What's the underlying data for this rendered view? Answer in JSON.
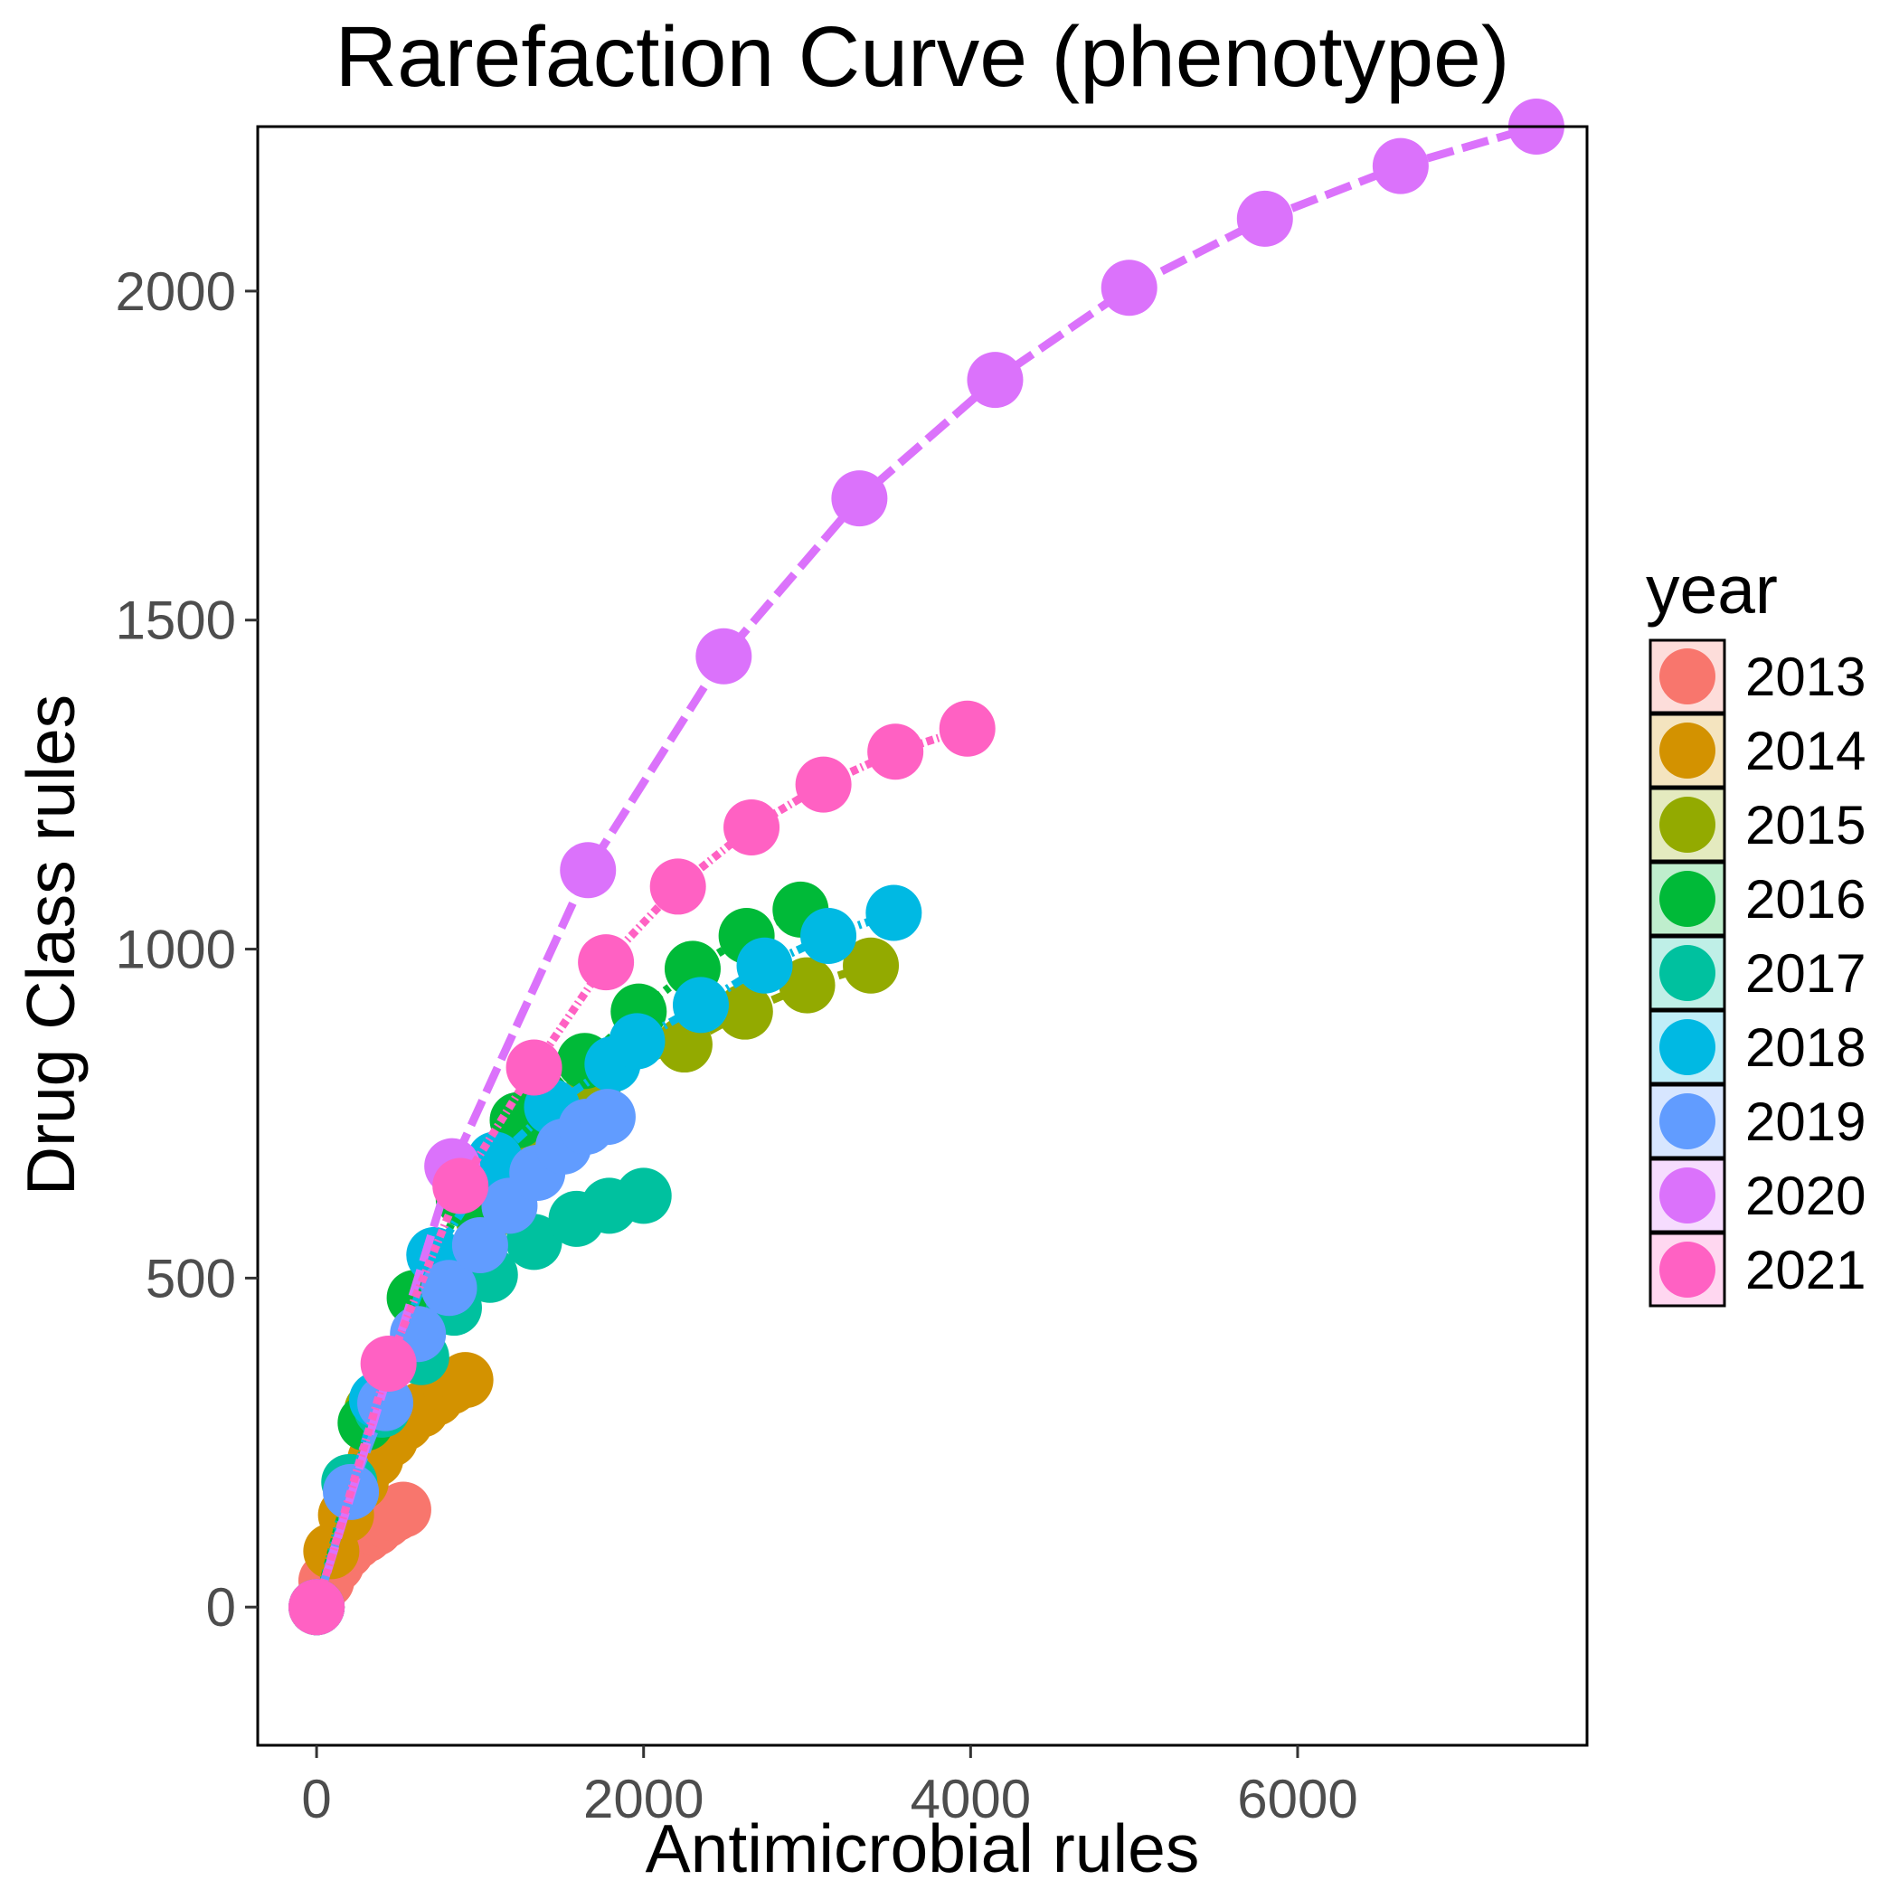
{
  "chart_data": {
    "type": "line",
    "title": "Rarefaction Curve (phenotype)",
    "xlabel": "Antimicrobial rules",
    "ylabel": "Drug Class rules",
    "xlim": [
      -360,
      7770
    ],
    "ylim": [
      -210,
      2250
    ],
    "x_ticks": [
      0,
      2000,
      4000,
      6000
    ],
    "y_ticks": [
      0,
      500,
      1000,
      1500,
      2000
    ],
    "grid": false,
    "legend": {
      "title": "year",
      "placement": "right"
    },
    "series": [
      {
        "name": "2013",
        "color": "#F8766D",
        "x": [
          0,
          60,
          120,
          180,
          240,
          300,
          360,
          420,
          480,
          530
        ],
        "y": [
          0,
          40,
          65,
          85,
          100,
          110,
          120,
          132,
          142,
          148
        ]
      },
      {
        "name": "2014",
        "color": "#D39200",
        "x": [
          0,
          90,
          180,
          270,
          360,
          450,
          540,
          640,
          730,
          820,
          910
        ],
        "y": [
          0,
          85,
          140,
          190,
          225,
          255,
          280,
          300,
          318,
          335,
          345
        ]
      },
      {
        "name": "2015",
        "color": "#93AA00",
        "x": [
          0,
          340,
          680,
          1020,
          1360,
          1700,
          2250,
          2620,
          3000,
          3390
        ],
        "y": [
          0,
          300,
          470,
          590,
          700,
          800,
          855,
          905,
          945,
          975
        ]
      },
      {
        "name": "2016",
        "color": "#00BA38",
        "x": [
          0,
          300,
          600,
          900,
          1230,
          1640,
          1970,
          2300,
          2630,
          2960
        ],
        "y": [
          0,
          280,
          470,
          620,
          740,
          830,
          905,
          970,
          1020,
          1060
        ]
      },
      {
        "name": "2017",
        "color": "#00C19F",
        "x": [
          0,
          200,
          400,
          640,
          840,
          1060,
          1330,
          1590,
          1790,
          2000
        ],
        "y": [
          0,
          190,
          300,
          380,
          455,
          505,
          555,
          590,
          610,
          625
        ]
      },
      {
        "name": "2018",
        "color": "#00B9E3",
        "x": [
          0,
          370,
          720,
          1090,
          1440,
          1810,
          1960,
          2350,
          2740,
          3130,
          3530
        ],
        "y": [
          0,
          315,
          535,
          680,
          760,
          825,
          860,
          915,
          975,
          1020,
          1055
        ]
      },
      {
        "name": "2019",
        "color": "#619CFF",
        "x": [
          0,
          210,
          420,
          620,
          810,
          1000,
          1180,
          1350,
          1510,
          1650,
          1780
        ],
        "y": [
          0,
          175,
          310,
          415,
          485,
          550,
          610,
          660,
          700,
          730,
          745
        ]
      },
      {
        "name": "2020",
        "color": "#DB72FB",
        "x": [
          0,
          830,
          1660,
          2490,
          3320,
          4150,
          4970,
          5800,
          6630,
          7460
        ],
        "y": [
          0,
          670,
          1120,
          1445,
          1685,
          1865,
          2005,
          2110,
          2190,
          2250
        ]
      },
      {
        "name": "2021",
        "color": "#FF61C3",
        "x": [
          0,
          440,
          880,
          1330,
          1770,
          2210,
          2660,
          3100,
          3540,
          3980
        ],
        "y": [
          0,
          370,
          640,
          820,
          980,
          1095,
          1185,
          1250,
          1300,
          1335
        ]
      }
    ]
  }
}
